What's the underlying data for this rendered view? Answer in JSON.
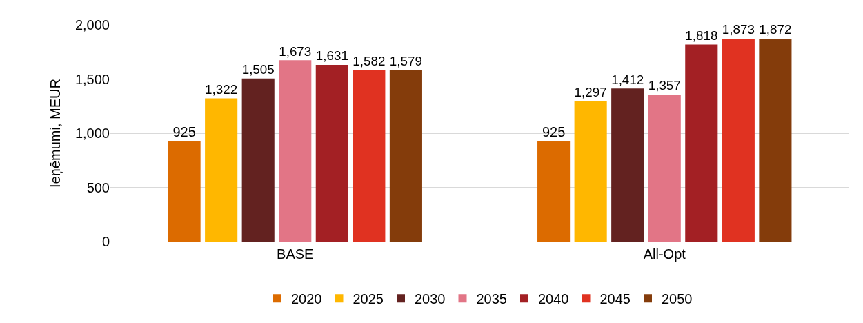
{
  "chart_data": {
    "type": "bar",
    "ylabel": "Ieņēmumi, MEUR",
    "categories": [
      "BASE",
      "All-Opt"
    ],
    "series": [
      {
        "name": "2020",
        "color": "#dc6b00",
        "values": [
          925,
          925
        ],
        "value_labels": [
          "925",
          "925"
        ]
      },
      {
        "name": "2025",
        "color": "#ffb700",
        "values": [
          1322,
          1297
        ],
        "value_labels": [
          "1,322",
          "1,297"
        ]
      },
      {
        "name": "2030",
        "color": "#632220",
        "values": [
          1505,
          1412
        ],
        "value_labels": [
          "1,505",
          "1,412"
        ]
      },
      {
        "name": "2035",
        "color": "#e27586",
        "values": [
          1673,
          1357
        ],
        "value_labels": [
          "1,673",
          "1,357"
        ]
      },
      {
        "name": "2040",
        "color": "#a32024",
        "values": [
          1631,
          1818
        ],
        "value_labels": [
          "1,631",
          "1,818"
        ]
      },
      {
        "name": "2045",
        "color": "#e03221",
        "values": [
          1582,
          1873
        ],
        "value_labels": [
          "1,582",
          "1,873"
        ]
      },
      {
        "name": "2050",
        "color": "#843c0b",
        "values": [
          1579,
          1872
        ],
        "value_labels": [
          "1,579",
          "1,872"
        ]
      }
    ],
    "ylim": [
      0,
      2000
    ],
    "yticks": [
      0,
      {
        "value": 500,
        "label": "500"
      },
      {
        "value": 1000,
        "label": "1,000"
      },
      {
        "value": 1500,
        "label": "1,500"
      },
      {
        "value": 2000,
        "label": "2,000"
      }
    ],
    "grid": "y",
    "legend": "bottom"
  }
}
